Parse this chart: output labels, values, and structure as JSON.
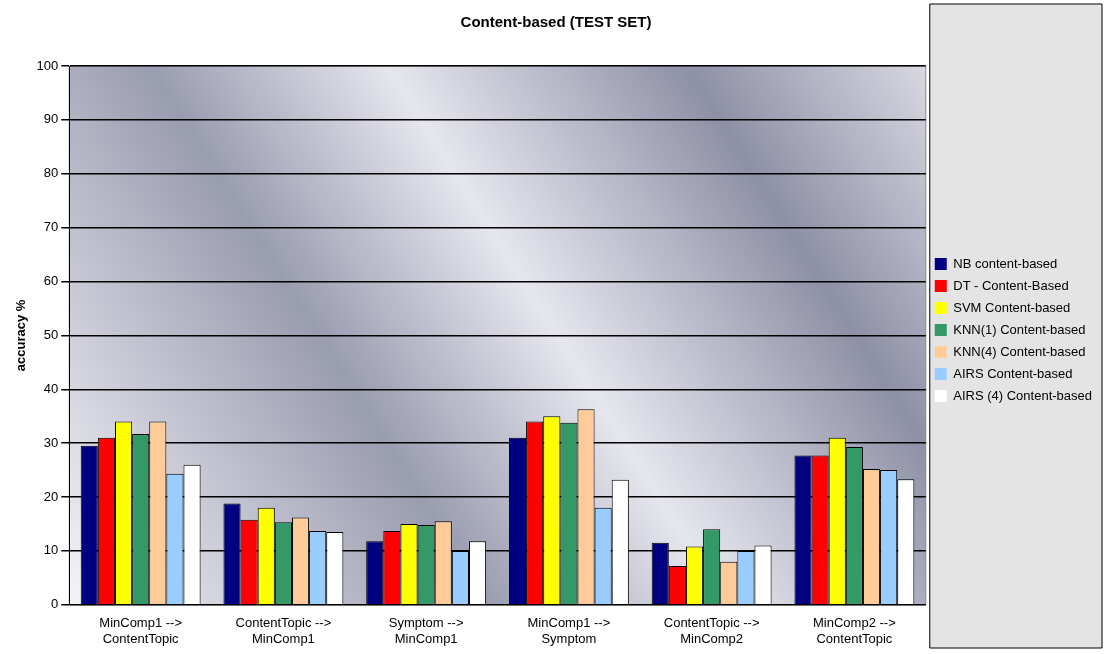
{
  "chart_data": {
    "type": "bar",
    "title": "Content-based (TEST SET)",
    "ylabel": "accuracy %",
    "categories": [
      "MinComp1 -->\nContentTopic",
      "ContentTopic -->\nMinComp1",
      "Symptom -->\nMinComp1",
      "MinComp1 -->\nSymptom",
      "ContentTopic -->\nMinComp2",
      "MinComp2 -->\nContentTopic"
    ],
    "series": [
      {
        "name": "NB content-based",
        "color": "#000080",
        "values": [
          29.5,
          18.8,
          11.8,
          31,
          11.5,
          27.7
        ]
      },
      {
        "name": "DT - Content-Based",
        "color": "#ff0000",
        "values": [
          31,
          15.8,
          13.7,
          34,
          7.2,
          27.7
        ]
      },
      {
        "name": "SVM Content-based",
        "color": "#ffff00",
        "values": [
          34,
          18,
          15,
          35,
          10.8,
          31
        ]
      },
      {
        "name": "KNN(1) Content-based",
        "color": "#339966",
        "values": [
          31.7,
          15.3,
          14.8,
          33.8,
          14,
          29.3
        ]
      },
      {
        "name": "KNN(4) Content-based",
        "color": "#ffcc99",
        "values": [
          34,
          16.2,
          15.5,
          36.3,
          8,
          25.2
        ]
      },
      {
        "name": "AIRS Content-based",
        "color": "#99ccff",
        "values": [
          24.3,
          13.7,
          10,
          18,
          10,
          25
        ]
      },
      {
        "name": "AIRS (4) Content-based",
        "color": "#ffffff",
        "values": [
          26,
          13.5,
          11.8,
          23.2,
          11,
          23.3
        ]
      }
    ],
    "ylim": [
      0,
      100
    ],
    "yticks": [
      0,
      10,
      20,
      30,
      40,
      50,
      60,
      70,
      80,
      90,
      100
    ],
    "grid": "y",
    "legend": "right"
  }
}
